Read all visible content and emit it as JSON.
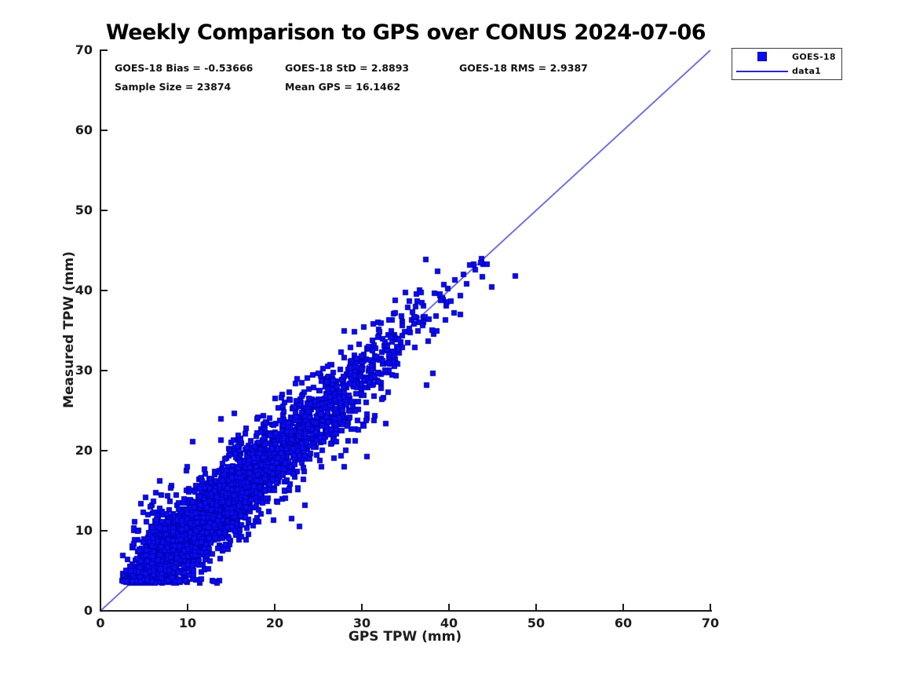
{
  "title": "Weekly Comparison to GPS over CONUS 2024-07-06",
  "annotations": {
    "bias": "GOES-18 Bias = -0.53666",
    "std": "GOES-18 StD = 2.8893",
    "rms": "GOES-18 RMS = 2.9387",
    "sample_size": "Sample Size = 23874",
    "mean_gps": "Mean GPS = 16.1462"
  },
  "axes": {
    "xlabel": "GPS TPW (mm)",
    "ylabel": "Measured TPW (mm)",
    "x_ticks": [
      0,
      10,
      20,
      30,
      40,
      50,
      60,
      70
    ],
    "y_ticks": [
      0,
      10,
      20,
      30,
      40,
      50,
      60,
      70
    ]
  },
  "legend": {
    "entries": [
      {
        "label": "GOES-18",
        "swatch": "filled-square"
      },
      {
        "label": "data1",
        "swatch": "line"
      }
    ]
  },
  "colors": {
    "marker_fill": "#0b0bf0",
    "marker_edge": "#0000b5",
    "line": "#2828c8",
    "axis": "#1a1a1a",
    "text": "#111111"
  },
  "chart_data": {
    "type": "scatter",
    "title": "Weekly Comparison to GPS over CONUS 2024-07-06",
    "xlabel": "GPS TPW (mm)",
    "ylabel": "Measured TPW (mm)",
    "xlim": [
      0,
      70
    ],
    "ylim": [
      0,
      70
    ],
    "grid": false,
    "legend_position": "outside-top-right",
    "series": [
      {
        "name": "GOES-18",
        "type": "scatter",
        "marker": "filled-square",
        "color": "#0b0bf0",
        "stats": {
          "bias": -0.53666,
          "std": 2.8893,
          "rms": 2.9387,
          "sample_size": 23874,
          "mean_gps": 16.1462
        },
        "gps_range_mm": [
          2.4,
          47.6
        ],
        "measured_range_mm": [
          3.6,
          43.9
        ]
      },
      {
        "name": "data1",
        "type": "line",
        "color": "#2828c8",
        "points": [
          [
            0,
            0
          ],
          [
            70,
            70
          ]
        ]
      }
    ],
    "render": {
      "seed": 20240706,
      "n_points": 3400,
      "gps_offset": 2.3,
      "gps_scale": 6.9,
      "gps_max": 44.5,
      "thin1_start": 34,
      "thin1_keep": 0.5,
      "thin2_start": 40,
      "thin2_keep": 0.3,
      "bias": -0.53666,
      "noise_std": 2.45,
      "wide_noise_prob": 0.1,
      "wide_noise_std": 4.3,
      "measured_min": 3.55,
      "measured_max": 44.2,
      "marker_px": 7
    },
    "fixed_points": [
      [
        47.6,
        41.9
      ],
      [
        44.3,
        43.3
      ],
      [
        43.6,
        43.5
      ],
      [
        43.0,
        42.6
      ],
      [
        42.3,
        43.2
      ],
      [
        41.6,
        42.1
      ],
      [
        44.9,
        40.5
      ],
      [
        43.8,
        41.8
      ],
      [
        42.0,
        40.9
      ],
      [
        40.6,
        41.4
      ],
      [
        39.8,
        40.3
      ],
      [
        40.2,
        38.7
      ],
      [
        41.3,
        39.4
      ],
      [
        38.9,
        39.6
      ],
      [
        21.9,
        11.6
      ],
      [
        22.8,
        10.6
      ],
      [
        23.4,
        13.2
      ],
      [
        30.5,
        19.3
      ],
      [
        4.6,
        13.4
      ],
      [
        5.1,
        14.2
      ],
      [
        5.7,
        13.0
      ],
      [
        4.9,
        12.4
      ],
      [
        3.9,
        11.2
      ],
      [
        6.3,
        14.8
      ],
      [
        6.0,
        13.7
      ],
      [
        5.4,
        12.1
      ]
    ]
  }
}
